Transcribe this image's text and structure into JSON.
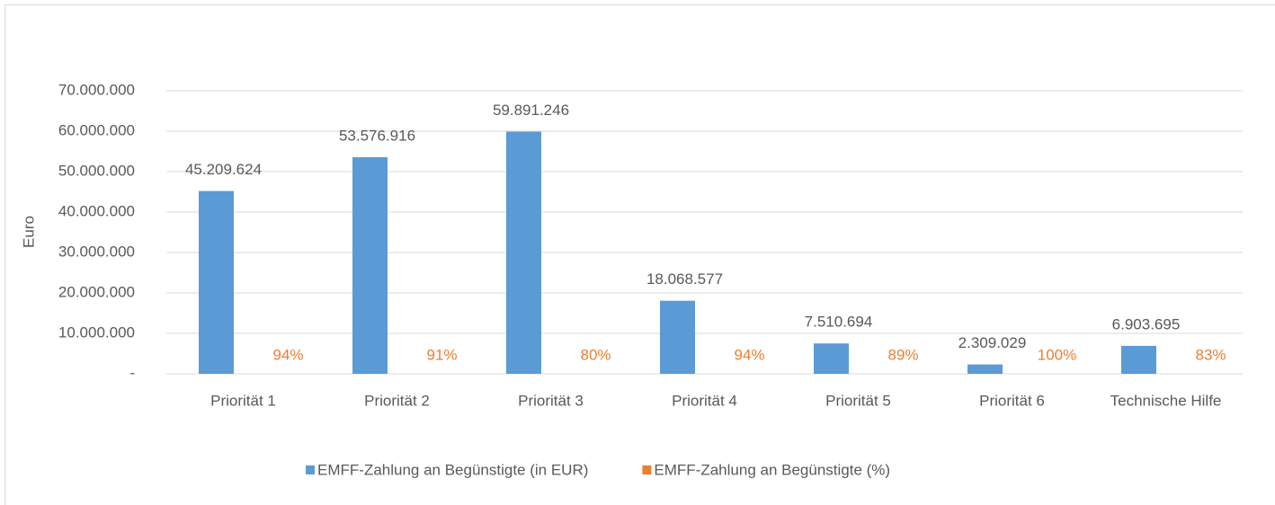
{
  "chart_data": {
    "type": "bar",
    "y_label": "Euro",
    "categories": [
      "Priorität 1",
      "Priorität 2",
      "Priorität 3",
      "Priorität 4",
      "Priorität 5",
      "Priorität 6",
      "Technische Hilfe"
    ],
    "series": [
      {
        "name": "EMFF-Zahlung an Begünstigte (in EUR)",
        "color": "#5b9bd5",
        "values": [
          45209624,
          53576916,
          59891246,
          18068577,
          7510694,
          2309029,
          6903695
        ],
        "value_labels": [
          "45.209.624",
          "53.576.916",
          "59.891.246",
          "18.068.577",
          "7.510.694",
          "2.309.029",
          "6.903.695"
        ]
      },
      {
        "name": "EMFF-Zahlung an Begünstigte (%)",
        "color": "#ed7d31",
        "values": [
          0.94,
          0.91,
          0.8,
          0.94,
          0.89,
          1.0,
          0.83
        ],
        "value_labels": [
          "94%",
          "91%",
          "80%",
          "94%",
          "89%",
          "100%",
          "83%"
        ]
      }
    ],
    "ylim": [
      0,
      70000000
    ],
    "yticks": [
      {
        "value": 0,
        "label": "-"
      },
      {
        "value": 10000000,
        "label": "10.000.000"
      },
      {
        "value": 20000000,
        "label": "20.000.000"
      },
      {
        "value": 30000000,
        "label": "30.000.000"
      },
      {
        "value": 40000000,
        "label": "40.000.000"
      },
      {
        "value": 50000000,
        "label": "50.000.000"
      },
      {
        "value": 60000000,
        "label": "60.000.000"
      },
      {
        "value": 70000000,
        "label": "70.000.000"
      }
    ],
    "grid": true,
    "legend": "bottom"
  }
}
